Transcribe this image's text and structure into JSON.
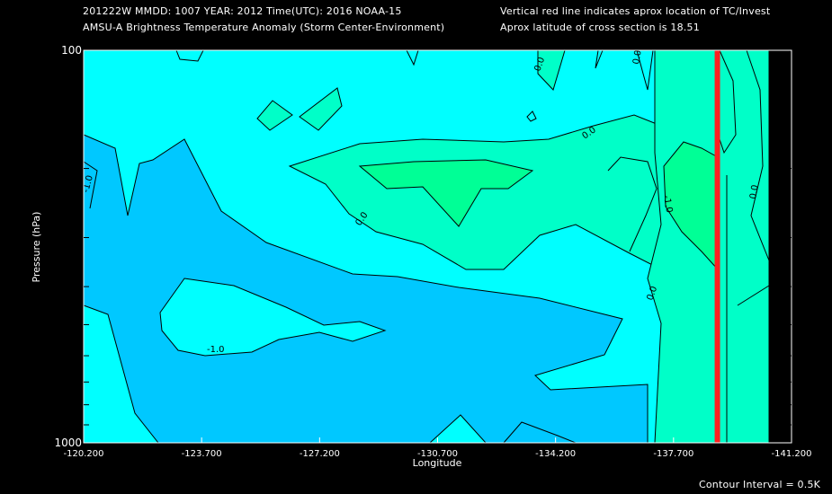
{
  "header": {
    "line1_left": "201222W  MMDD: 1007 YEAR: 2012 Time(UTC): 2016 NOAA-15",
    "line2_left": "AMSU-A Brightness Temperature Anomaly (Storm Center-Environment)",
    "line1_right": "Vertical red line indicates aprox location of TC/Invest",
    "line2_right": "Aprox latitude of cross section is 18.51"
  },
  "footer": {
    "contour_interval": "Contour Interval = 0.5K"
  },
  "colors": {
    "background": "#000000",
    "level_neg1_5": "#00c8ff",
    "level_neg1": "#00ffff",
    "level_neg0_5": "#00ffc8",
    "level_0": "#00ff96",
    "storm_line": "#ff2020",
    "contour": "#000000"
  },
  "chart_data": {
    "type": "heatmap",
    "title": "AMSU-A Brightness Temperature Anomaly (Storm Center-Environment)",
    "xlabel": "Longitude",
    "ylabel": "Pressure (hPa)",
    "x_ticks": [
      "-120.200",
      "-123.700",
      "-127.200",
      "-130.700",
      "-134.200",
      "-137.700",
      "-141.200"
    ],
    "x_range": [
      -120.2,
      -141.2
    ],
    "y_ticks": [
      "100",
      "1000"
    ],
    "y_range": [
      100,
      1000
    ],
    "y_scale": "log",
    "storm_longitude": -139.0,
    "contour_interval": 0.5,
    "contour_labels": [
      "-1.0",
      "-1.0",
      "0.0",
      "0.0",
      "0.0",
      "0.0",
      "0.0",
      "-1.0",
      "0.0"
    ],
    "legend": "none",
    "grid": false
  }
}
